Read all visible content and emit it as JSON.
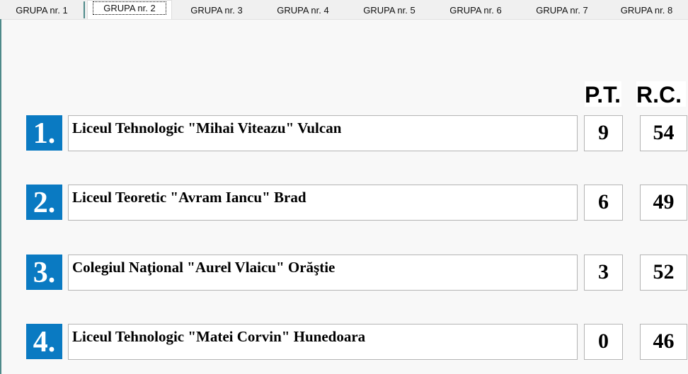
{
  "tabs": [
    "GRUPA  nr. 1",
    "GRUPA  nr. 2",
    "GRUPA  nr. 3",
    "GRUPA  nr. 4",
    "GRUPA  nr. 5",
    "GRUPA  nr. 6",
    "GRUPA  nr. 7",
    "GRUPA  nr. 8"
  ],
  "selected_tab": 1,
  "headers": {
    "pt": "P.T.",
    "rc": "R.C."
  },
  "rows": [
    {
      "rank": "1.",
      "name": "Liceul Tehnologic \"Mihai Viteazu\" Vulcan",
      "pt": "9",
      "rc": "54"
    },
    {
      "rank": "2.",
      "name": "Liceul Teoretic \"Avram Iancu\" Brad",
      "pt": "6",
      "rc": "49"
    },
    {
      "rank": "3.",
      "name": "Colegiul Naţional \"Aurel Vlaicu\" Orăştie",
      "pt": "3",
      "rc": "52"
    },
    {
      "rank": "4.",
      "name": "Liceul Tehnologic \"Matei Corvin\" Hunedoara",
      "pt": "0",
      "rc": "46"
    }
  ],
  "colors": {
    "rank_bg": "#0a7ac2",
    "tab_separator": "#4f8a8a"
  }
}
